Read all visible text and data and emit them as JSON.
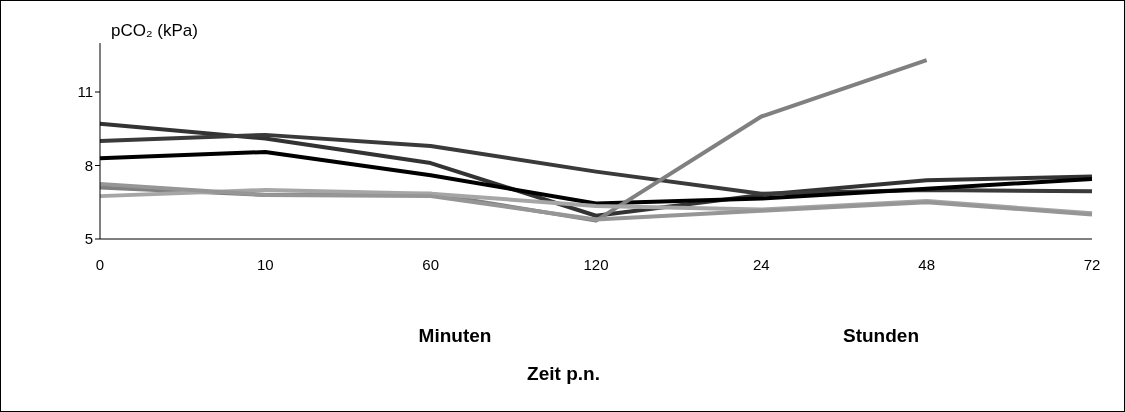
{
  "chart_data": {
    "type": "line",
    "xlabel": "Zeit p.n.",
    "ylabel": "pCO₂ (kPa)",
    "annotations": [
      "Minuten",
      "Stunden"
    ],
    "categories": [
      "0",
      "10",
      "60",
      "120",
      "24",
      "48",
      "72"
    ],
    "series": [
      {
        "color": "#333333",
        "values": [
          9.7,
          9.1,
          8.1,
          5.95,
          6.8,
          7.4,
          7.55
        ]
      },
      {
        "color": "#3a3a3a",
        "values": [
          9.0,
          9.25,
          8.8,
          7.75,
          6.85,
          7.0,
          6.95
        ]
      },
      {
        "color": "#000000",
        "values": [
          8.3,
          8.55,
          7.6,
          6.45,
          6.65,
          7.05,
          7.45
        ]
      },
      {
        "color": "#808080",
        "values": [
          7.1,
          6.8,
          6.85,
          5.75,
          10.0,
          12.3,
          null
        ]
      },
      {
        "color": "#a6a6a6",
        "values": [
          6.75,
          7.0,
          6.85,
          6.35,
          6.2,
          6.55,
          6.05
        ]
      },
      {
        "color": "#969696",
        "values": [
          7.25,
          6.8,
          6.75,
          5.8,
          6.15,
          6.5,
          6.0
        ]
      }
    ],
    "ylim": [
      5,
      13
    ],
    "yticks": [
      5,
      8,
      11
    ],
    "grid": false,
    "legend": false,
    "marker": "none",
    "line_style": "solid"
  }
}
